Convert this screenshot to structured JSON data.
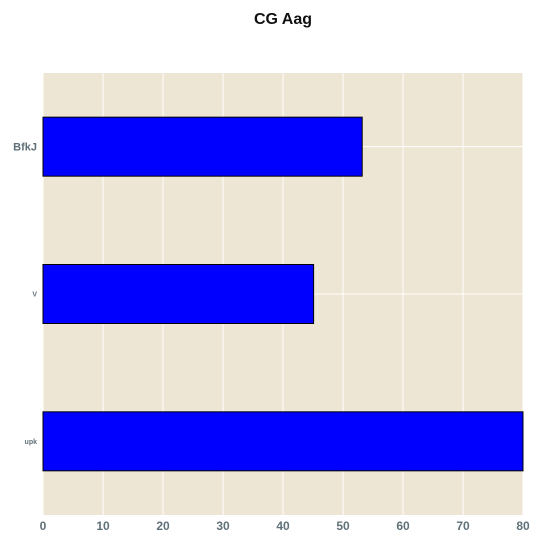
{
  "chart_data": {
    "type": "bar",
    "orientation": "horizontal",
    "title": "CG  Aag",
    "categories": [
      "BfkJ",
      "V",
      "upk"
    ],
    "values": [
      53.2,
      45.1,
      80
    ],
    "xlabel": "",
    "ylabel": "",
    "xlim": [
      0,
      80
    ],
    "x_ticks": [
      "0",
      "10",
      "20",
      "30",
      "40",
      "50",
      "60",
      "70",
      "80"
    ],
    "grid": true,
    "legend": "none",
    "colors": {
      "bar_fill": "#0000ff",
      "bar_edge": "#000000",
      "plot_background": "#ede6d5",
      "grid": "#ffffff",
      "tick_label": "#5f7078"
    }
  }
}
